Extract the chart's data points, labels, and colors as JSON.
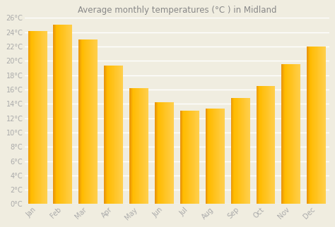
{
  "title": "Average monthly temperatures (°C ) in Midland",
  "months": [
    "Jan",
    "Feb",
    "Mar",
    "Apr",
    "May",
    "Jun",
    "Jul",
    "Aug",
    "Sep",
    "Oct",
    "Nov",
    "Dec"
  ],
  "values": [
    24.2,
    25.0,
    23.0,
    19.3,
    16.2,
    14.2,
    13.0,
    13.3,
    14.8,
    16.5,
    19.5,
    22.0
  ],
  "bar_color_left": "#E8940A",
  "bar_color_mid": "#FFBB00",
  "bar_color_right": "#FFD050",
  "background_color": "#f0ede0",
  "plot_bg_color": "#f0ede0",
  "grid_color": "#ffffff",
  "ylim": [
    0,
    26
  ],
  "yticks": [
    0,
    2,
    4,
    6,
    8,
    10,
    12,
    14,
    16,
    18,
    20,
    22,
    24,
    26
  ],
  "ytick_labels": [
    "0°C",
    "2°C",
    "4°C",
    "6°C",
    "8°C",
    "10°C",
    "12°C",
    "14°C",
    "16°C",
    "18°C",
    "20°C",
    "22°C",
    "24°C",
    "26°C"
  ],
  "title_fontsize": 8.5,
  "tick_fontsize": 7,
  "title_color": "#888888",
  "tick_color": "#aaaaaa",
  "bar_width": 0.75
}
